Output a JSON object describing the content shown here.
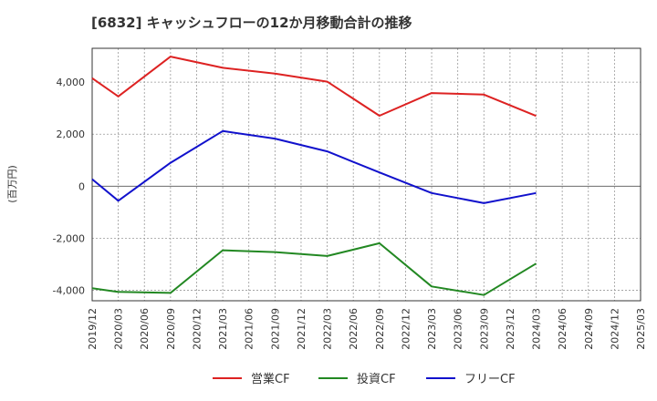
{
  "chart_data": {
    "type": "line",
    "title": "[6832]  キャッシュフローの12か月移動合計の推移",
    "ylabel": "(百万円)",
    "xlabel": "",
    "ylim": [
      -4400,
      5300
    ],
    "yticks": [
      {
        "value": 4000,
        "label": "4,000"
      },
      {
        "value": 2000,
        "label": "2,000"
      },
      {
        "value": 0,
        "label": "0"
      },
      {
        "value": -2000,
        "label": "-2,000"
      },
      {
        "value": -4000,
        "label": "-4,000"
      }
    ],
    "categories": [
      "2019/12",
      "2020/03",
      "2020/06",
      "2020/09",
      "2020/12",
      "2021/03",
      "2021/06",
      "2021/09",
      "2021/12",
      "2022/03",
      "2022/06",
      "2022/09",
      "2022/12",
      "2023/03",
      "2023/06",
      "2023/09",
      "2023/12",
      "2024/03",
      "2024/06",
      "2024/09",
      "2024/12",
      "2025/03"
    ],
    "series": [
      {
        "name": "営業CF",
        "color": "#dd2222",
        "values": [
          4150,
          3450,
          null,
          4980,
          null,
          4550,
          null,
          4330,
          null,
          4020,
          null,
          2710,
          null,
          3580,
          null,
          3520,
          null,
          2700,
          null,
          null,
          null,
          null
        ]
      },
      {
        "name": "投資CF",
        "color": "#228822",
        "values": [
          -3920,
          -4060,
          null,
          -4100,
          null,
          -2460,
          null,
          -2530,
          null,
          -2680,
          null,
          -2190,
          null,
          -3850,
          null,
          -4180,
          null,
          -2970,
          null,
          null,
          null,
          null
        ]
      },
      {
        "name": "フリーCF",
        "color": "#1111cc",
        "values": [
          270,
          -560,
          null,
          900,
          null,
          2120,
          null,
          1830,
          null,
          1340,
          null,
          530,
          null,
          -260,
          null,
          -650,
          null,
          -260,
          null,
          null,
          null,
          null
        ]
      }
    ],
    "legend_position": "bottom",
    "grid": true
  }
}
